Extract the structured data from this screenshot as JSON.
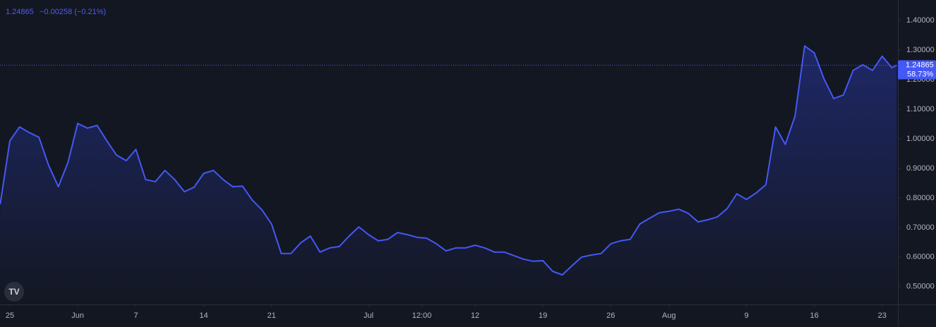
{
  "chart_data": {
    "type": "line",
    "header": {
      "price": "1.24865",
      "change": "−0.00258 (−0.21%)"
    },
    "x": [
      -1,
      0,
      1,
      2,
      3,
      4,
      5,
      6,
      7,
      8,
      9,
      10,
      11,
      12,
      13,
      14,
      15,
      16,
      17,
      18,
      19,
      20,
      21,
      22,
      23,
      24,
      25,
      26,
      27,
      28,
      29,
      30,
      31,
      32,
      33,
      34,
      35,
      36,
      37,
      38,
      39,
      40,
      41,
      42,
      43,
      44,
      45,
      46,
      47,
      48,
      49,
      50,
      51,
      52,
      53,
      54,
      55,
      56,
      57,
      58,
      59,
      60,
      61,
      62,
      63,
      64,
      65,
      66,
      67,
      68,
      69,
      70,
      71,
      72,
      73,
      74,
      75,
      76,
      77,
      78,
      79,
      80,
      81,
      82,
      83,
      84,
      85,
      86,
      87,
      88,
      89,
      90,
      91,
      91.5
    ],
    "series": [
      {
        "color": "#4458f5",
        "values": [
          0.779,
          0.993,
          1.04,
          1.021,
          1.005,
          0.91,
          0.838,
          0.921,
          1.052,
          1.036,
          1.045,
          0.993,
          0.945,
          0.926,
          0.964,
          0.862,
          0.855,
          0.893,
          0.862,
          0.821,
          0.836,
          0.883,
          0.893,
          0.862,
          0.838,
          0.84,
          0.793,
          0.76,
          0.712,
          0.612,
          0.612,
          0.648,
          0.671,
          0.617,
          0.631,
          0.636,
          0.671,
          0.702,
          0.676,
          0.655,
          0.66,
          0.683,
          0.676,
          0.667,
          0.664,
          0.645,
          0.621,
          0.631,
          0.631,
          0.64,
          0.631,
          0.617,
          0.617,
          0.605,
          0.593,
          0.586,
          0.588,
          0.552,
          0.54,
          0.571,
          0.6,
          0.607,
          0.612,
          0.645,
          0.655,
          0.66,
          0.712,
          0.731,
          0.75,
          0.755,
          0.762,
          0.748,
          0.719,
          0.726,
          0.736,
          0.764,
          0.814,
          0.795,
          0.817,
          0.845,
          1.04,
          0.981,
          1.076,
          1.314,
          1.29,
          1.202,
          1.136,
          1.148,
          1.231,
          1.25,
          1.231,
          1.279,
          1.24,
          1.24865
        ]
      }
    ],
    "xlim": [
      -1.02,
      91.62
    ],
    "xticks": [
      {
        "value": 0,
        "label": "25"
      },
      {
        "value": 7,
        "label": "Jun"
      },
      {
        "value": 13,
        "label": "7"
      },
      {
        "value": 20,
        "label": "14"
      },
      {
        "value": 27,
        "label": "21"
      },
      {
        "value": 37,
        "label": "Jul"
      },
      {
        "value": 42.5,
        "label": "12:00"
      },
      {
        "value": 48,
        "label": "12"
      },
      {
        "value": 55,
        "label": "19"
      },
      {
        "value": 62,
        "label": "26"
      },
      {
        "value": 68,
        "label": "Aug"
      },
      {
        "value": 76,
        "label": "9"
      },
      {
        "value": 83,
        "label": "16"
      },
      {
        "value": 90,
        "label": "23"
      }
    ],
    "ylim": [
      0.44,
      1.469
    ],
    "yticks": [
      {
        "value": 0.5,
        "label": "0.50000"
      },
      {
        "value": 0.6,
        "label": "0.60000"
      },
      {
        "value": 0.7,
        "label": "0.70000"
      },
      {
        "value": 0.8,
        "label": "0.80000"
      },
      {
        "value": 0.9,
        "label": "0.90000"
      },
      {
        "value": 1.0,
        "label": "1.00000"
      },
      {
        "value": 1.1,
        "label": "1.10000"
      },
      {
        "value": 1.2,
        "label": "1.20000"
      },
      {
        "value": 1.3,
        "label": "1.30000"
      },
      {
        "value": 1.4,
        "label": "1.40000"
      }
    ],
    "price_tag": {
      "value": 1.24865,
      "percent": "58.73%"
    }
  }
}
